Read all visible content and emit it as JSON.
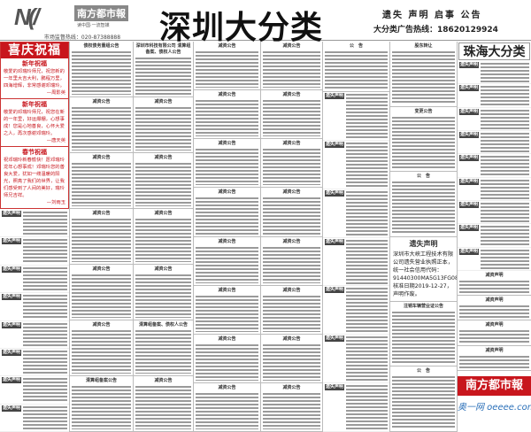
{
  "header": {
    "logo_mark": "N(/",
    "logo_name": "南方都市報",
    "logo_slogan": "读中国·一流智媒",
    "hotline": "市场监督热线：020-87388888",
    "title": "深圳大分类",
    "right_line1": "遗失 声明 启事 公告",
    "right_line2": "大分类广告热线：18620129924"
  },
  "blessings": {
    "title": "喜庆祝福",
    "sections": [
      {
        "heading": "新年祝福",
        "text": "敬爱的邓瑞玲师兄，祝您新的一年里大吉大利，鹏程万里，四海增辉，非常感谢邓瑞玲。",
        "sign": "周影英"
      },
      {
        "heading": "新年祝福",
        "text": "敬爱的邓瑞玲师兄，祝您在新的一年里，好运爆棚，心想事成！您是心地善良，心怀大爱之人，再次感谢邓瑞玲。",
        "sign": "唐天英"
      },
      {
        "heading": "春节祝福",
        "text": "祝邓瑞玲新春愉快！愿邓瑞玲龙年心想事成！邓瑞玲您的善良大爱，犹如一缕温暖的阳光，照亮了我们的世界，让我们感受到了人间的美好，瑞玲师兄吉祥。",
        "sign": "刘雨玉"
      }
    ]
  },
  "lost_label": "遗失声明",
  "columns": [
    {
      "notices": [
        "债权债务重组公告",
        "减资公告",
        "减资公告",
        "减资公告",
        "减资公告",
        "减资公告",
        "清算组备案公告"
      ]
    },
    {
      "notices": [
        "深圳市科技有限公司 清算组备案、债权人公告",
        "减资公告",
        "减资公告",
        "减资公告",
        "减资公告",
        "清算组备案、债权人公告",
        "减资公告"
      ]
    },
    {
      "notices": [
        "减资公告",
        "减资公告",
        "减资公告",
        "减资公告",
        "减资公告",
        "减资公告",
        "减资公告",
        "减资公告"
      ]
    },
    {
      "notices": [
        "减资公告",
        "减资公告",
        "减资公告",
        "减资公告",
        "减资公告",
        "减资公告",
        "减资公告",
        "减资公告"
      ]
    },
    {
      "notices": [
        "公　告",
        "遗失声明",
        "遗失声明",
        "遗失声明",
        "遗失声明",
        "遗失声明",
        "遗失声明",
        "遗失声明"
      ]
    },
    {
      "notices": [
        "股东转让",
        "变更公告",
        "公　告"
      ],
      "lost_box": {
        "heading": "遗失声明",
        "text": "深圳市大峡工程技术有限公司遗失营业执照正本，统一社会信用代码：91440300MA5G13FG08，核准日期2019-12-27，声明作废。"
      },
      "after": [
        "注销车辆营业证公告",
        "公　告"
      ]
    },
    {
      "zh_title": "珠海大分类",
      "lost_count": 9,
      "after": [
        "减资声明",
        "减资声明",
        "减资声明",
        "减资声明"
      ]
    }
  ],
  "brand": {
    "name": "南方都市報",
    "site": "奥一网 oeeee.com"
  }
}
